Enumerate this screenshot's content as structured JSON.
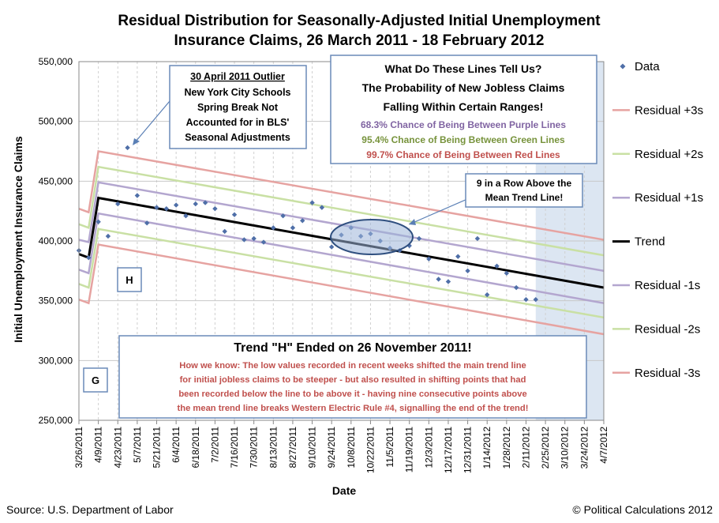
{
  "chart_data": {
    "type": "scatter",
    "title": [
      "Residual Distribution for Seasonally-Adjusted Initial Unemployment",
      "Insurance Claims, 26 March 2011 - 18 February 2012"
    ],
    "xlabel": "Date",
    "ylabel": "Initial Unemployment Insurance Claims",
    "ylim": [
      250000,
      550000
    ],
    "yticks": [
      "250,000",
      "300,000",
      "350,000",
      "400,000",
      "450,000",
      "500,000",
      "550,000"
    ],
    "xticks": [
      "3/26/2011",
      "4/9/2011",
      "4/23/2011",
      "5/7/2011",
      "5/21/2011",
      "6/4/2011",
      "6/18/2011",
      "7/2/2011",
      "7/16/2011",
      "7/30/2011",
      "8/13/2011",
      "8/27/2011",
      "9/10/2011",
      "9/24/2011",
      "10/8/2011",
      "10/22/2011",
      "11/5/2011",
      "11/19/2011",
      "12/3/2011",
      "12/17/2011",
      "12/31/2011",
      "1/14/2012",
      "1/28/2012",
      "2/11/2012",
      "2/25/2012",
      "3/10/2012",
      "3/24/2012",
      "4/7/2012"
    ],
    "x_start": "2011-03-26",
    "x_end": "2012-04-07",
    "forecast_shade_start": "2012-02-18",
    "data_points": [
      [
        "2011-03-26",
        392000
      ],
      [
        "2011-04-02",
        386000
      ],
      [
        "2011-04-09",
        416000
      ],
      [
        "2011-04-16",
        404000
      ],
      [
        "2011-04-23",
        431000
      ],
      [
        "2011-04-30",
        478000
      ],
      [
        "2011-05-07",
        438000
      ],
      [
        "2011-05-14",
        415000
      ],
      [
        "2011-05-21",
        428000
      ],
      [
        "2011-05-28",
        427000
      ],
      [
        "2011-06-04",
        430000
      ],
      [
        "2011-06-11",
        421000
      ],
      [
        "2011-06-18",
        431000
      ],
      [
        "2011-06-25",
        432000
      ],
      [
        "2011-07-02",
        427000
      ],
      [
        "2011-07-09",
        408000
      ],
      [
        "2011-07-16",
        422000
      ],
      [
        "2011-07-23",
        401000
      ],
      [
        "2011-07-30",
        402000
      ],
      [
        "2011-08-06",
        399000
      ],
      [
        "2011-08-13",
        411000
      ],
      [
        "2011-08-20",
        421000
      ],
      [
        "2011-08-27",
        411000
      ],
      [
        "2011-09-03",
        417000
      ],
      [
        "2011-09-10",
        432000
      ],
      [
        "2011-09-17",
        428000
      ],
      [
        "2011-09-24",
        395000
      ],
      [
        "2011-10-01",
        405000
      ],
      [
        "2011-10-08",
        411000
      ],
      [
        "2011-10-15",
        404000
      ],
      [
        "2011-10-22",
        406000
      ],
      [
        "2011-10-29",
        400000
      ],
      [
        "2011-11-05",
        394000
      ],
      [
        "2011-11-12",
        392000
      ],
      [
        "2011-11-19",
        396000
      ],
      [
        "2011-11-26",
        402000
      ],
      [
        "2011-12-03",
        385000
      ],
      [
        "2011-12-10",
        368000
      ],
      [
        "2011-12-17",
        366000
      ],
      [
        "2011-12-24",
        387000
      ],
      [
        "2011-12-31",
        375000
      ],
      [
        "2012-01-07",
        402000
      ],
      [
        "2012-01-14",
        355000
      ],
      [
        "2012-01-21",
        379000
      ],
      [
        "2012-01-28",
        373000
      ],
      [
        "2012-02-04",
        361000
      ],
      [
        "2012-02-11",
        351000
      ],
      [
        "2012-02-18",
        351000
      ]
    ],
    "lines": [
      {
        "name": "Residual +3s",
        "color": "#E6A3A1",
        "points": [
          [
            "2011-03-26",
            427000
          ],
          [
            "2011-04-02",
            424000
          ],
          [
            "2011-04-09",
            475000
          ],
          [
            "2012-04-07",
            401000
          ]
        ]
      },
      {
        "name": "Residual +2s",
        "color": "#C9E0A4",
        "points": [
          [
            "2011-03-26",
            414000
          ],
          [
            "2011-04-02",
            411000
          ],
          [
            "2011-04-09",
            462000
          ],
          [
            "2012-04-07",
            388000
          ]
        ]
      },
      {
        "name": "Residual +1s",
        "color": "#B3A6CF",
        "points": [
          [
            "2011-03-26",
            401000
          ],
          [
            "2011-04-02",
            399000
          ],
          [
            "2011-04-09",
            449000
          ],
          [
            "2012-04-07",
            375000
          ]
        ]
      },
      {
        "name": "Trend",
        "color": "#000000",
        "points": [
          [
            "2011-03-26",
            389000
          ],
          [
            "2011-04-02",
            386000
          ],
          [
            "2011-04-09",
            436000
          ],
          [
            "2012-04-07",
            361000
          ]
        ]
      },
      {
        "name": "Residual -1s",
        "color": "#B3A6CF",
        "points": [
          [
            "2011-03-26",
            376000
          ],
          [
            "2011-04-02",
            373000
          ],
          [
            "2011-04-09",
            423000
          ],
          [
            "2012-04-07",
            348000
          ]
        ]
      },
      {
        "name": "Residual -2s",
        "color": "#C9E0A4",
        "points": [
          [
            "2011-03-26",
            364000
          ],
          [
            "2011-04-02",
            361000
          ],
          [
            "2011-04-09",
            410000
          ],
          [
            "2012-04-07",
            336000
          ]
        ]
      },
      {
        "name": "Residual -3s",
        "color": "#E6A3A1",
        "points": [
          [
            "2011-03-26",
            351000
          ],
          [
            "2011-04-02",
            348000
          ],
          [
            "2011-04-09",
            397000
          ],
          [
            "2012-04-07",
            322000
          ]
        ]
      }
    ],
    "legend": [
      {
        "label": "Data",
        "type": "marker",
        "color": "#4F6FA8"
      },
      {
        "label": "Residual +3s",
        "type": "line",
        "color": "#E6A3A1"
      },
      {
        "label": "Residual +2s",
        "type": "line",
        "color": "#C9E0A4"
      },
      {
        "label": "Residual +1s",
        "type": "line",
        "color": "#B3A6CF"
      },
      {
        "label": "Trend",
        "type": "line",
        "color": "#000000"
      },
      {
        "label": "Residual -1s",
        "type": "line",
        "color": "#B3A6CF"
      },
      {
        "label": "Residual -2s",
        "type": "line",
        "color": "#C9E0A4"
      },
      {
        "label": "Residual -3s",
        "type": "line",
        "color": "#E6A3A1"
      }
    ],
    "legend_placement": "right",
    "grid": true,
    "colors": {
      "data_marker": "#4F6FA8",
      "box_border": "#6A8AB8",
      "purple_text": "#8064A2",
      "green_text": "#77933C",
      "red_text": "#C0504D",
      "box_red": "#C0504D",
      "shade": "#DCE6F2"
    },
    "annotations": {
      "outlier": {
        "lines": [
          "30 April 2011 Outlier",
          "New York City Schools",
          "Spring Break Not",
          "Accounted for in BLS'",
          "Seasonal Adjustments"
        ]
      },
      "what_lines": {
        "heading": [
          "What Do These Lines Tell Us?",
          "The Probability of New Jobless Claims",
          "Falling Within Certain Ranges!"
        ],
        "purple": "68.3% Chance of Being Between Purple Lines",
        "green": "95.4% Chance of Being Between Green Lines",
        "red": "99.7% Chance of Being Between Red Lines"
      },
      "nine_in_row": {
        "lines": [
          "9 in a Row Above the",
          "Mean Trend Line!"
        ]
      },
      "trend_h": {
        "heading": "Trend \"H\" Ended on 26 November 2011!",
        "body": [
          "How we know: The low values recorded in recent weeks shifted the main trend line",
          "for initial jobless claims to be steeper - but also resulted in shifting points that had",
          "been recorded below the line to be above it - having nine consecutive points above",
          "the mean trend line breaks Western Electric Rule #4, signalling the end of the trend!"
        ]
      },
      "label_h": "H",
      "label_g": "G"
    }
  },
  "footer": {
    "source": "Source: U.S. Department of Labor",
    "credit": "© Political Calculations 2012"
  }
}
